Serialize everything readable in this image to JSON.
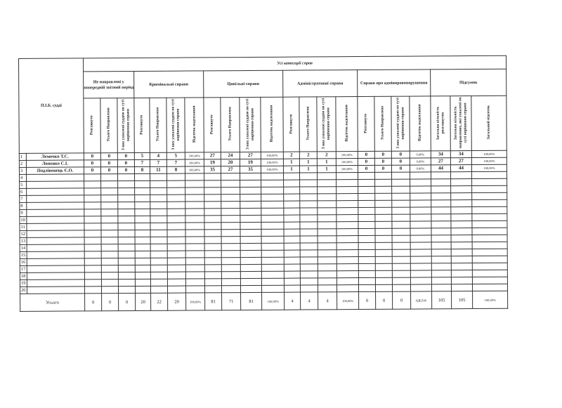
{
  "title": "Усі категорії справ",
  "name_header": "П.І.Б. судді",
  "groups": [
    {
      "label": "Не направлені у попередній звітний період",
      "cols": [
        "Розглянуто",
        "Усього Направлено",
        "З них ухвалені суддею по суті вирішення справи"
      ]
    },
    {
      "label": "Кримінальні справи",
      "cols": [
        "Розглянуто",
        "Усього Направлено",
        "З них ухвалені суддею по суті вирішення справи",
        "Відсоток надсилання"
      ]
    },
    {
      "label": "Цивільні справи",
      "cols": [
        "Розглянуто",
        "Усього Направлено",
        "З них ухвалені суддею по суті вирішення справи",
        "Відсоток надсилання"
      ]
    },
    {
      "label": "Адміністративні справи",
      "cols": [
        "Розглянуто",
        "Усього Направлено",
        "З них ухвалені суддею по суті вирішення справи",
        "Відсоток надсилання"
      ]
    },
    {
      "label": "Справи про адмінправопорушення",
      "cols": [
        "Розглянуто",
        "Усього Направлено",
        "З них ухвалені суддею по суті вирішення справи",
        "Відсоток надсилання"
      ]
    },
    {
      "label": "Підсумок",
      "cols": [
        "Загальна кількість розглянутих",
        "Загальна кількість направлених, які ухвалені по суті вирішення справи",
        "Загальний відсоток"
      ]
    }
  ],
  "rows": [
    {
      "no": "1",
      "name": "Лемочко Т.С.",
      "values": [
        "0",
        "0",
        "0",
        "5",
        "4",
        "5",
        "100,00%",
        "27",
        "24",
        "27",
        "100,00%",
        "2",
        "2",
        "2",
        "100,00%",
        "0",
        "0",
        "0",
        "0,00%",
        "34",
        "34",
        "100,00%"
      ]
    },
    {
      "no": "2",
      "name": "Лопенко С.І.",
      "values": [
        "0",
        "0",
        "0",
        "7",
        "7",
        "7",
        "100,00%",
        "19",
        "20",
        "19",
        "100,00%",
        "1",
        "1",
        "1",
        "100,00%",
        "0",
        "0",
        "0",
        "0,00%",
        "27",
        "27",
        "100,00%"
      ]
    },
    {
      "no": "3",
      "name": "Подлівенець Є.О.",
      "values": [
        "0",
        "0",
        "0",
        "8",
        "11",
        "8",
        "100,00%",
        "35",
        "27",
        "35",
        "100,00%",
        "1",
        "1",
        "1",
        "100,00%",
        "0",
        "0",
        "0",
        "0,00%",
        "44",
        "44",
        "100,00%"
      ]
    },
    {
      "no": "4"
    },
    {
      "no": "5"
    },
    {
      "no": "6"
    },
    {
      "no": "7"
    },
    {
      "no": "8"
    },
    {
      "no": "9"
    },
    {
      "no": "10"
    },
    {
      "no": "11"
    },
    {
      "no": "12"
    },
    {
      "no": "13"
    },
    {
      "no": "14"
    },
    {
      "no": "15"
    },
    {
      "no": "16"
    },
    {
      "no": "17"
    },
    {
      "no": "18"
    },
    {
      "no": "19"
    },
    {
      "no": "20"
    }
  ],
  "total": {
    "label": "Усього",
    "values": [
      "0",
      "0",
      "0",
      "20",
      "22",
      "20",
      "100,00%",
      "81",
      "71",
      "81",
      "100,00%",
      "4",
      "4",
      "4",
      "100,00%",
      "0",
      "0",
      "0",
      "#ДЕЛ/0!",
      "105",
      "105",
      "100,00%"
    ]
  }
}
